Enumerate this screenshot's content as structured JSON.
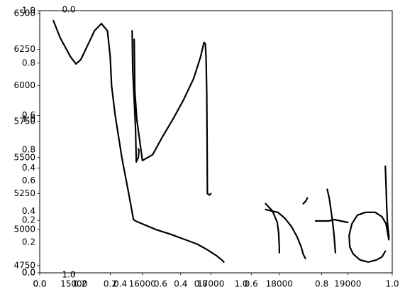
{
  "chart_data": [
    {
      "type": "line",
      "role": "handwriting-strokes",
      "xlim": [
        14500,
        19650
      ],
      "ylim": [
        4700,
        6520
      ],
      "x_ticks": [
        15000,
        16000,
        17000,
        18000,
        19000
      ],
      "x_tick_labels": [
        "15000",
        "16000",
        "17000",
        "18000",
        "19000"
      ],
      "y_ticks": [
        4750,
        5000,
        5250,
        5500,
        5750,
        6000,
        6250,
        6500
      ],
      "y_tick_labels": [
        "4750",
        "5000",
        "5250",
        "5500",
        "5750",
        "6000",
        "6250",
        "6500"
      ],
      "grid": false,
      "series": [
        {
          "x": [
            14700,
            14800,
            14950,
            15030,
            15100,
            15200,
            15300,
            15400,
            15490,
            15530,
            15550,
            15600,
            15700,
            15800,
            15850,
            15870,
            15900,
            16000,
            16200,
            16400,
            16600,
            16800,
            16950,
            17080,
            17160,
            17190
          ],
          "y": [
            6450,
            6330,
            6200,
            6150,
            6180,
            6280,
            6380,
            6430,
            6380,
            6200,
            6000,
            5800,
            5500,
            5250,
            5120,
            5070,
            5060,
            5040,
            5000,
            4970,
            4935,
            4900,
            4860,
            4820,
            4790,
            4775
          ]
        },
        {
          "x": [
            15850,
            15860,
            15880,
            15900,
            15910,
            15940,
            15950,
            15940
          ],
          "y": [
            6380,
            6100,
            5900,
            5700,
            5470,
            5500,
            5550,
            5560
          ]
        },
        {
          "x": [
            15880,
            15890,
            15920,
            16000,
            16150,
            16300,
            16450,
            16600,
            16750,
            16850,
            16900,
            16920,
            16930,
            16940,
            16945,
            16950,
            16980,
            17000
          ],
          "y": [
            6320,
            5960,
            5760,
            5480,
            5520,
            5650,
            5770,
            5900,
            6050,
            6200,
            6300,
            6290,
            6200,
            5950,
            5600,
            5250,
            5240,
            5250
          ]
        },
        {
          "x": [
            17800,
            17900,
            17970,
            17990,
            18000,
            18000
          ],
          "y": [
            5180,
            5130,
            5050,
            4980,
            4880,
            4840
          ]
        },
        {
          "x": [
            17800,
            17880,
            17980,
            18080,
            18180,
            18260,
            18320,
            18350,
            18380
          ],
          "y": [
            5140,
            5130,
            5120,
            5080,
            5020,
            4950,
            4880,
            4830,
            4800
          ]
        },
        {
          "x": [
            18350,
            18370,
            18390,
            18400,
            18410
          ],
          "y": [
            5180,
            5190,
            5200,
            5210,
            5220
          ]
        },
        {
          "x": [
            18530,
            18620,
            18720,
            18800,
            18900,
            19000
          ],
          "y": [
            5060,
            5060,
            5060,
            5070,
            5060,
            5050
          ]
        },
        {
          "x": [
            18700,
            18730,
            18760,
            18780,
            18800,
            18820
          ],
          "y": [
            5280,
            5220,
            5120,
            5050,
            4960,
            4840
          ]
        },
        {
          "x": [
            19550,
            19560,
            19570,
            19580,
            19600,
            19600,
            19560,
            19500,
            19400,
            19260,
            19140,
            19060,
            19020,
            19030,
            19080,
            19180,
            19300,
            19420,
            19500,
            19550
          ],
          "y": [
            5440,
            5300,
            5150,
            5050,
            4960,
            4930,
            5040,
            5090,
            5120,
            5120,
            5100,
            5040,
            4960,
            4880,
            4830,
            4790,
            4775,
            4790,
            4810,
            4850
          ]
        }
      ]
    },
    {
      "type": "line",
      "role": "empty-overlay-axes",
      "xlim": [
        0,
        1
      ],
      "ylim": [
        0,
        1
      ],
      "x_tick_labels": [
        "0.0",
        "0.2",
        "0.4",
        "0.6",
        "0.8",
        "1.0"
      ],
      "y_tick_labels": [
        "0.0",
        "0.2",
        "0.4",
        "0.6",
        "0.8",
        "1.0"
      ],
      "series": []
    },
    {
      "type": "line",
      "role": "clipped-overlay-axes",
      "x_tick_labels": [
        "0.0",
        "0.2",
        "0.4",
        "0.6",
        "0.8",
        "1.0"
      ],
      "x_tick_positions": [
        0.0,
        0.2,
        0.4,
        0.6,
        0.8,
        1.0
      ],
      "y_tick_labels": [
        "0.0",
        "0.2",
        "0.4",
        "0.6",
        "0.8",
        "1.0"
      ],
      "y_tick_positions": [
        0.0,
        0.2,
        0.4,
        0.6,
        0.8,
        1.0
      ],
      "top_label": "0.0",
      "bottom_label": "1.0",
      "series": []
    }
  ]
}
